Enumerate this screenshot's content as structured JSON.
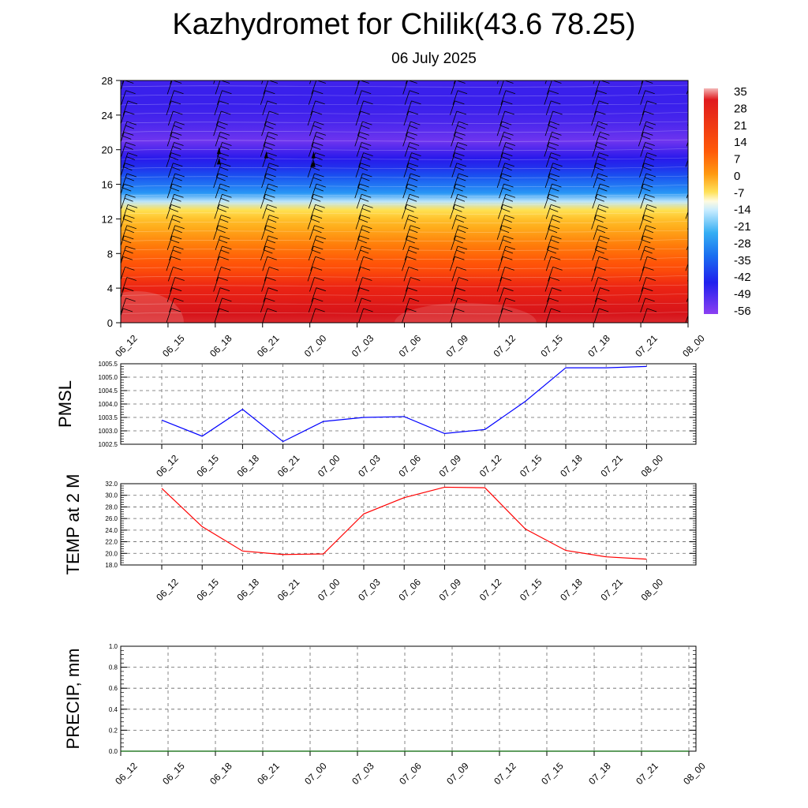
{
  "header": {
    "title": "Kazhydromet for Chilik(43.6 78.25)",
    "subtitle": "06 July 2025"
  },
  "chart_data": [
    {
      "type": "heatmap",
      "id": "upper-air",
      "title": "",
      "xlabel": "",
      "ylabel": "",
      "x": [
        "06_12",
        "06_15",
        "06_18",
        "06_21",
        "07_00",
        "07_03",
        "07_06",
        "07_09",
        "07_12",
        "07_15",
        "07_18",
        "07_21",
        "08_00"
      ],
      "y_ticks": [
        0,
        4,
        8,
        12,
        16,
        20,
        24,
        28
      ],
      "ylim": [
        0,
        28
      ],
      "colorbar_labels": [
        "35",
        "28",
        "21",
        "14",
        "7",
        "0",
        "-7",
        "-14",
        "-21",
        "-28",
        "-35",
        "-42",
        "-49",
        "-56"
      ],
      "colorbar_range": [
        -63,
        42
      ],
      "colors": {
        "warm": "#e0161a",
        "orange": "#ff7a0a",
        "yellow": "#fff04a",
        "cold": "#33a6f2",
        "deep": "#1a27ee",
        "violet": "#8a3ff0"
      },
      "profile_levels": [
        0,
        1,
        2,
        3,
        4,
        5,
        6,
        7,
        8,
        9,
        10,
        11,
        12,
        13,
        14,
        15,
        16,
        17,
        18,
        19,
        20,
        21,
        22,
        23,
        24,
        25,
        26,
        27,
        28
      ],
      "profile_temps": [
        30,
        28,
        26,
        23,
        21,
        18,
        15,
        13,
        10,
        7,
        4,
        1,
        -2,
        -7,
        -20,
        -30,
        -36,
        -42,
        -48,
        -52,
        -56,
        -60,
        -58,
        -56,
        -55,
        -54,
        -54,
        -54,
        -55
      ],
      "wind_barbs": true
    },
    {
      "type": "line",
      "id": "pmsl",
      "ylabel": "PMSL",
      "x": [
        "06_12",
        "06_15",
        "06_18",
        "06_21",
        "07_00",
        "07_03",
        "07_06",
        "07_09",
        "07_12",
        "07_15",
        "07_18",
        "07_21",
        "08_00"
      ],
      "series": [
        {
          "values": [
            1003.4,
            1002.8,
            1003.8,
            1002.6,
            1003.35,
            1003.5,
            1003.53,
            1002.9,
            1003.05,
            1004.1,
            1005.35,
            1005.35,
            1005.4
          ],
          "color": "#0000ff"
        }
      ],
      "y_ticks": [
        "1002.5",
        "1003.0",
        "1003.5",
        "1004.0",
        "1004.5",
        "1005.0",
        "1005.5"
      ],
      "ylim": [
        1002.5,
        1005.5
      ],
      "grid": true
    },
    {
      "type": "line",
      "id": "temp",
      "ylabel": "TEMP at 2 M",
      "x": [
        "06_12",
        "06_15",
        "06_18",
        "06_21",
        "07_00",
        "07_03",
        "07_06",
        "07_09",
        "07_12",
        "07_15",
        "07_18",
        "07_21",
        "08_00"
      ],
      "series": [
        {
          "values": [
            31.2,
            24.6,
            20.4,
            19.8,
            19.9,
            26.8,
            29.6,
            31.4,
            31.3,
            24.2,
            20.5,
            19.4,
            19.0
          ],
          "color": "#ff0000"
        }
      ],
      "y_ticks": [
        "18.0",
        "20.0",
        "22.0",
        "24.0",
        "26.0",
        "28.0",
        "30.0",
        "32.0"
      ],
      "ylim": [
        18,
        32
      ],
      "grid": true
    },
    {
      "type": "line",
      "id": "precip",
      "ylabel": "PRECIP, mm",
      "x": [
        "06_12",
        "06_15",
        "06_18",
        "06_21",
        "07_00",
        "07_03",
        "07_06",
        "07_09",
        "07_12",
        "07_15",
        "07_18",
        "07_21",
        "08_00"
      ],
      "series": [
        {
          "values": [
            0,
            0,
            0,
            0,
            0,
            0,
            0,
            0,
            0,
            0,
            0,
            0,
            0
          ],
          "color": "#006400"
        }
      ],
      "y_ticks": [
        "0.0",
        "0.2",
        "0.4",
        "0.6",
        "0.8",
        "1.0"
      ],
      "ylim": [
        0,
        1
      ],
      "grid": true
    }
  ]
}
